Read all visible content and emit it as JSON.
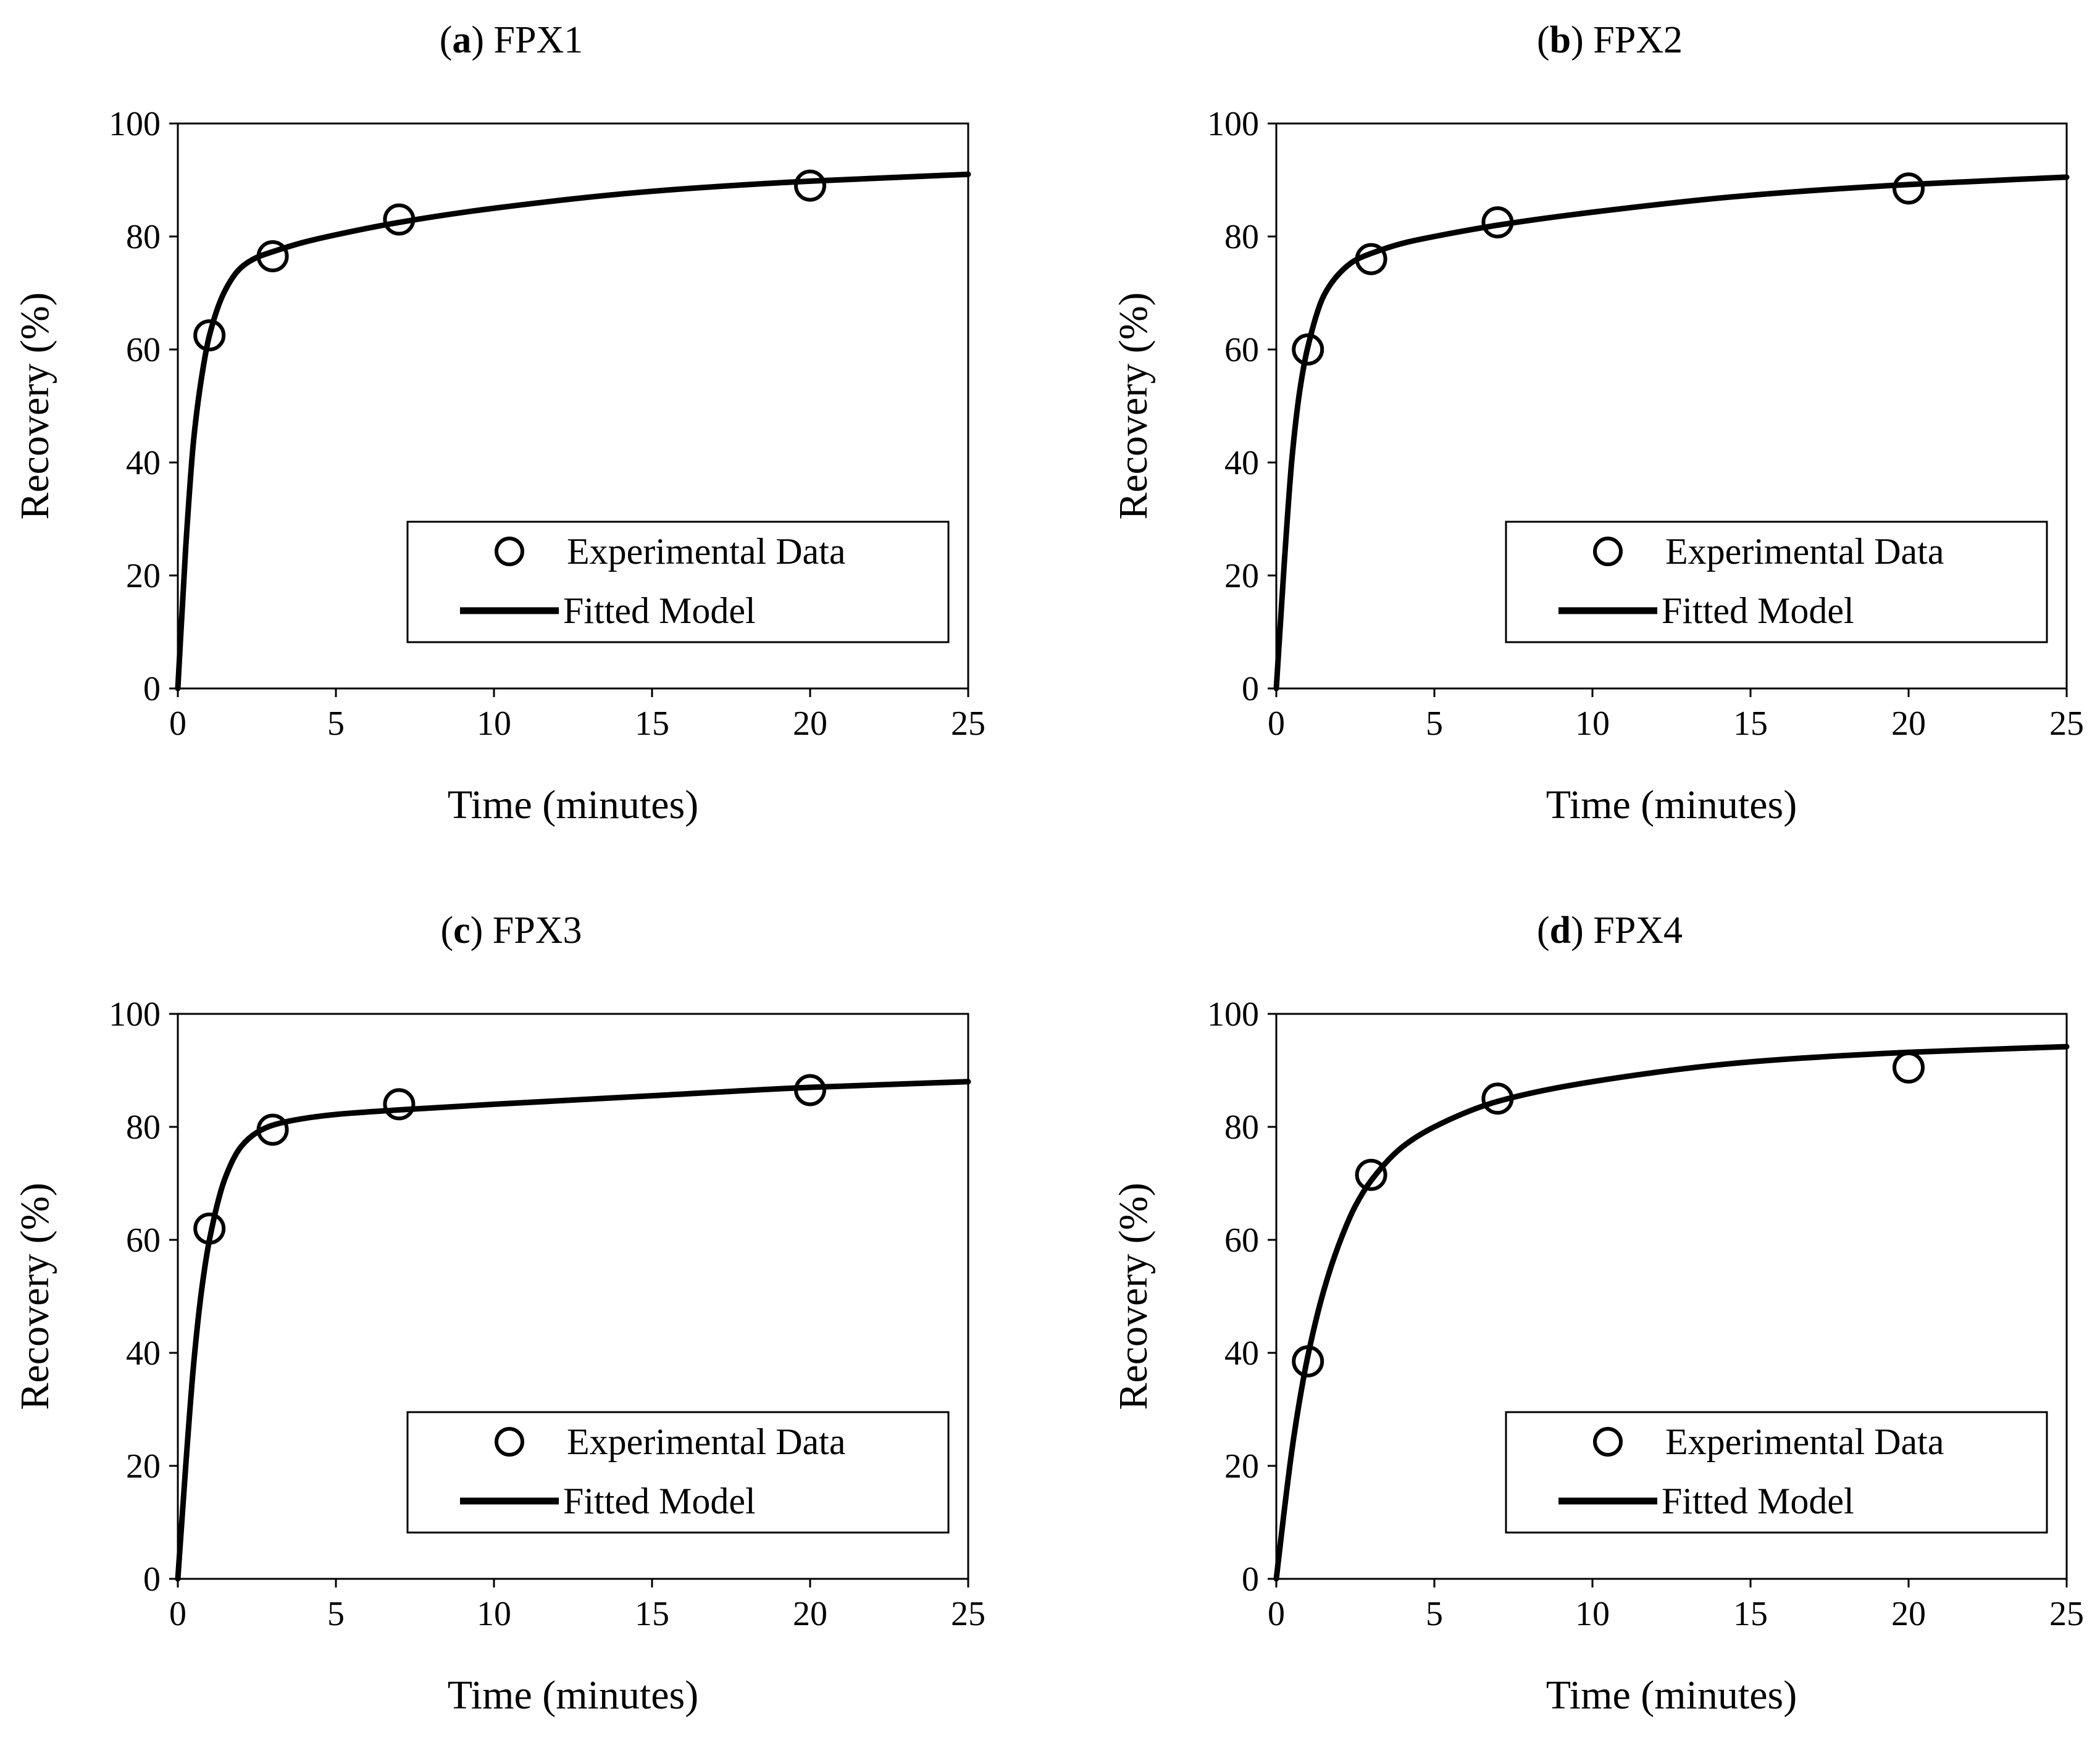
{
  "colors": {
    "ink": "#000000",
    "background": "#ffffff"
  },
  "chart_data": [
    {
      "type": "scatter",
      "panel_letter": "a",
      "panel_name": "FPX1",
      "xlabel": "Time (minutes)",
      "ylabel": "Recovery (%)",
      "xlim": [
        0,
        25
      ],
      "ylim": [
        0,
        100
      ],
      "xticks": [
        "0",
        "5",
        "10",
        "15",
        "20",
        "25"
      ],
      "yticks": [
        "0",
        "20",
        "40",
        "60",
        "80",
        "100"
      ],
      "legend_position": "bottom-right",
      "series": [
        {
          "name": "Experimental Data",
          "kind": "markers",
          "marker": "open-circle",
          "x": [
            1,
            3,
            7,
            20
          ],
          "y": [
            62.5,
            76.5,
            83,
            89
          ]
        },
        {
          "name": "Fitted Model",
          "kind": "line",
          "x": [
            0,
            0.25,
            0.5,
            0.75,
            1,
            1.5,
            2,
            2.5,
            3,
            4,
            5,
            7,
            10,
            15,
            20,
            25
          ],
          "y": [
            0,
            25,
            44,
            55,
            62.5,
            70.5,
            74.5,
            76.3,
            77.3,
            79,
            80.3,
            82.5,
            85,
            88,
            89.8,
            91
          ]
        }
      ]
    },
    {
      "type": "scatter",
      "panel_letter": "b",
      "panel_name": "FPX2",
      "xlabel": "Time (minutes)",
      "ylabel": "Recovery (%)",
      "xlim": [
        0,
        25
      ],
      "ylim": [
        0,
        100
      ],
      "xticks": [
        "0",
        "5",
        "10",
        "15",
        "20",
        "25"
      ],
      "yticks": [
        "0",
        "20",
        "40",
        "60",
        "80",
        "100"
      ],
      "legend_position": "bottom-right",
      "series": [
        {
          "name": "Experimental Data",
          "kind": "markers",
          "marker": "open-circle",
          "x": [
            1,
            3,
            7,
            20
          ],
          "y": [
            60,
            76,
            82.5,
            88.5
          ]
        },
        {
          "name": "Fitted Model",
          "kind": "line",
          "x": [
            0,
            0.25,
            0.5,
            0.75,
            1,
            1.5,
            2,
            2.5,
            3,
            4,
            5,
            7,
            10,
            15,
            20,
            25
          ],
          "y": [
            0,
            22,
            41,
            53,
            60.5,
            69.5,
            73.5,
            75.8,
            77,
            78.8,
            80,
            82,
            84.3,
            87.3,
            89.2,
            90.5
          ]
        }
      ]
    },
    {
      "type": "scatter",
      "panel_letter": "c",
      "panel_name": "FPX3",
      "xlabel": "Time (minutes)",
      "ylabel": "Recovery (%)",
      "xlim": [
        0,
        25
      ],
      "ylim": [
        0,
        100
      ],
      "xticks": [
        "0",
        "5",
        "10",
        "15",
        "20",
        "25"
      ],
      "yticks": [
        "0",
        "20",
        "40",
        "60",
        "80",
        "100"
      ],
      "legend_position": "bottom-right",
      "series": [
        {
          "name": "Experimental Data",
          "kind": "markers",
          "marker": "open-circle",
          "x": [
            1,
            3,
            7,
            20
          ],
          "y": [
            62,
            79.5,
            84,
            86.5
          ]
        },
        {
          "name": "Fitted Model",
          "kind": "line",
          "x": [
            0,
            0.25,
            0.5,
            0.75,
            1,
            1.5,
            2,
            2.5,
            3,
            4,
            5,
            7,
            10,
            15,
            20,
            25
          ],
          "y": [
            0,
            20,
            38,
            51,
            60,
            71,
            76.5,
            79,
            80.3,
            81.5,
            82.2,
            83,
            84,
            85.5,
            87,
            88
          ]
        }
      ]
    },
    {
      "type": "scatter",
      "panel_letter": "d",
      "panel_name": "FPX4",
      "xlabel": "Time (minutes)",
      "ylabel": "Recovery (%)",
      "xlim": [
        0,
        25
      ],
      "ylim": [
        0,
        100
      ],
      "xticks": [
        "0",
        "5",
        "10",
        "15",
        "20",
        "25"
      ],
      "yticks": [
        "0",
        "20",
        "40",
        "60",
        "80",
        "100"
      ],
      "legend_position": "bottom-right",
      "series": [
        {
          "name": "Experimental Data",
          "kind": "markers",
          "marker": "open-circle",
          "x": [
            1,
            3,
            7,
            20
          ],
          "y": [
            38.5,
            71.5,
            85,
            90.5
          ]
        },
        {
          "name": "Fitted Model",
          "kind": "line",
          "x": [
            0,
            0.25,
            0.5,
            0.75,
            1,
            1.5,
            2,
            2.5,
            3,
            4,
            5,
            7,
            10,
            15,
            20,
            25
          ],
          "y": [
            0,
            12,
            23,
            32,
            39.5,
            51,
            59.5,
            66,
            70.5,
            76.5,
            80,
            84.5,
            88,
            91.5,
            93.2,
            94.2
          ]
        }
      ]
    }
  ]
}
